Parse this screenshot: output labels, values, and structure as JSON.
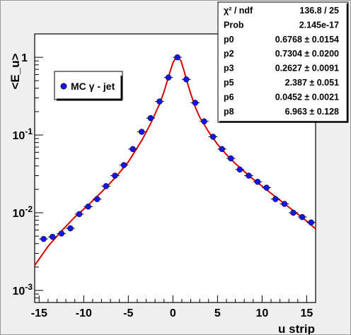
{
  "chart_data": {
    "type": "scatter",
    "xlabel": "u strip",
    "ylabel": "<E_u>",
    "xlim": [
      -15.5,
      16
    ],
    "ylim": [
      0.0007,
      2.0
    ],
    "y_scale": "log",
    "x_ticks": [
      -15,
      -10,
      -5,
      0,
      5,
      10,
      15
    ],
    "x_tick_labels": [
      "-15",
      "-10",
      "-5",
      "0",
      "5",
      "10",
      "15"
    ],
    "y_ticks": [
      0.001,
      0.01,
      0.1,
      1
    ],
    "y_tick_labels": [
      {
        "base": "10",
        "exp": "-3"
      },
      {
        "base": "10",
        "exp": "-2"
      },
      {
        "base": "10",
        "exp": "-1"
      },
      {
        "base": "1",
        "exp": ""
      }
    ],
    "legend": {
      "entries": [
        "MC γ - jet"
      ],
      "placement": "top-left"
    },
    "series": [
      {
        "name": "MC γ - jet",
        "marker": "circle",
        "color": "#1515e6",
        "x": [
          -14.5,
          -13.5,
          -12.5,
          -11.5,
          -10.5,
          -9.5,
          -8.5,
          -7.5,
          -6.5,
          -5.5,
          -4.5,
          -3.5,
          -2.5,
          -1.5,
          -0.5,
          0.5,
          1.5,
          2.5,
          3.5,
          4.5,
          5.5,
          6.5,
          7.5,
          8.5,
          9.5,
          10.5,
          11.5,
          12.5,
          13.5,
          14.5,
          15.5
        ],
        "y": [
          0.0046,
          0.0049,
          0.0054,
          0.0063,
          0.0096,
          0.012,
          0.015,
          0.022,
          0.03,
          0.041,
          0.066,
          0.11,
          0.165,
          0.27,
          0.55,
          1.0,
          0.52,
          0.26,
          0.15,
          0.095,
          0.066,
          0.05,
          0.036,
          0.03,
          0.025,
          0.021,
          0.015,
          0.013,
          0.01,
          0.0088,
          0.0075
        ],
        "xerr": 0.5
      }
    ],
    "fit": {
      "name": "fit",
      "color": "#d40000",
      "x": [
        -15.5,
        -14.0,
        -12.5,
        -11.0,
        -9.5,
        -8.0,
        -6.5,
        -5.0,
        -3.5,
        -2.5,
        -1.5,
        -1.0,
        -0.5,
        0.0,
        0.3,
        0.6,
        0.9,
        1.2,
        1.6,
        2.0,
        2.5,
        3.0,
        4.0,
        5.0,
        6.0,
        7.0,
        8.0,
        9.0,
        10.0,
        11.0,
        12.0,
        13.0,
        14.0,
        15.0,
        16.0
      ],
      "y": [
        0.0021,
        0.0037,
        0.0058,
        0.0088,
        0.0125,
        0.0185,
        0.028,
        0.045,
        0.085,
        0.14,
        0.25,
        0.36,
        0.56,
        0.85,
        0.98,
        1.0,
        0.9,
        0.7,
        0.48,
        0.34,
        0.23,
        0.17,
        0.11,
        0.076,
        0.056,
        0.043,
        0.034,
        0.027,
        0.022,
        0.0178,
        0.0145,
        0.0118,
        0.0096,
        0.0078,
        0.0062
      ]
    }
  },
  "stats_box": {
    "rows": [
      {
        "label": "χ² / ndf",
        "value": "136.8 / 25"
      },
      {
        "label": "Prob",
        "value": "2.145e-17"
      },
      {
        "label": "p0",
        "value": "0.6768 ± 0.0154"
      },
      {
        "label": "p2",
        "value": "0.7304 ± 0.0200"
      },
      {
        "label": "p3",
        "value": "0.2627 ± 0.0091"
      },
      {
        "label": "p5",
        "value": "2.387 ± 0.051"
      },
      {
        "label": "p6",
        "value": "0.0452 ± 0.0021"
      },
      {
        "label": "p8",
        "value": "6.963 ± 0.128"
      }
    ]
  }
}
